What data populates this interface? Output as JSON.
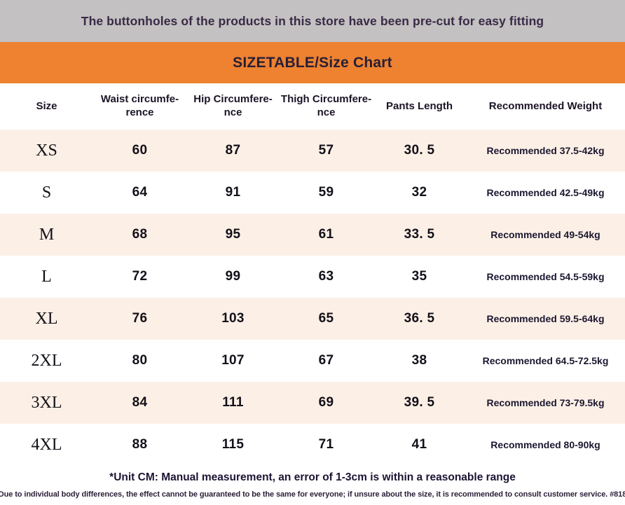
{
  "top_banner": {
    "text": "The buttonholes of the products in this store have been pre-cut for easy fitting"
  },
  "title_banner": {
    "text": "SIZETABLE/Size Chart"
  },
  "table": {
    "headers": {
      "size": "Size",
      "waist": "Waist circumfe-\nrence",
      "hip": "Hip Circumfere-\nnce",
      "thigh": "Thigh Circumfere-\nnce",
      "length": "Pants Length",
      "weight": "Recommended Weight"
    },
    "rows": [
      {
        "size": "XS",
        "waist": "60",
        "hip": "87",
        "thigh": "57",
        "length": "30. 5",
        "weight": "Recommended 37.5-42kg"
      },
      {
        "size": "S",
        "waist": "64",
        "hip": "91",
        "thigh": "59",
        "length": "32",
        "weight": "Recommended 42.5-49kg"
      },
      {
        "size": "M",
        "waist": "68",
        "hip": "95",
        "thigh": "61",
        "length": "33. 5",
        "weight": "Recommended 49-54kg"
      },
      {
        "size": "L",
        "waist": "72",
        "hip": "99",
        "thigh": "63",
        "length": "35",
        "weight": "Recommended 54.5-59kg"
      },
      {
        "size": "XL",
        "waist": "76",
        "hip": "103",
        "thigh": "65",
        "length": "36. 5",
        "weight": "Recommended 59.5-64kg"
      },
      {
        "size": "2XL",
        "waist": "80",
        "hip": "107",
        "thigh": "67",
        "length": "38",
        "weight": "Recommended 64.5-72.5kg"
      },
      {
        "size": "3XL",
        "waist": "84",
        "hip": "111",
        "thigh": "69",
        "length": "39. 5",
        "weight": "Recommended 73-79.5kg"
      },
      {
        "size": "4XL",
        "waist": "88",
        "hip": "115",
        "thigh": "71",
        "length": "41",
        "weight": "Recommended 80-90kg"
      }
    ],
    "unit_note": "*Unit CM: Manual measurement, an error of 1-3cm is within a reasonable range"
  },
  "bottom_notice": {
    "text": "Due to individual body differences, the effect cannot be guaranteed to be the same for everyone; if unsure about the size, it is recommended to consult customer service. #818"
  },
  "colors": {
    "gray_banner": "#c3c1c2",
    "orange_accent": "#ee8231",
    "peach_row": "#fcf0e6",
    "dark_text": "#2e2140"
  }
}
